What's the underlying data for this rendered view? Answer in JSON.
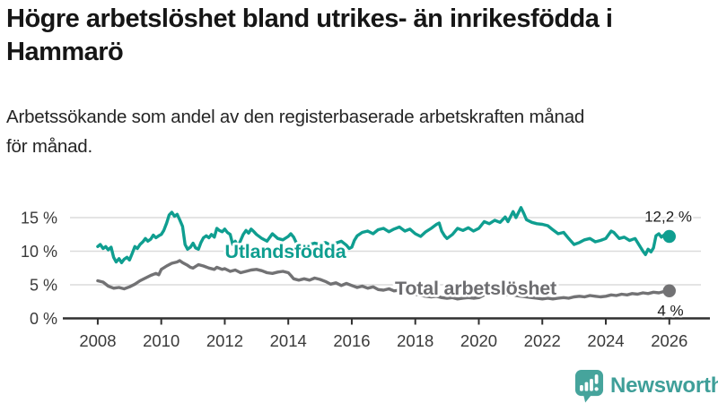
{
  "title": "Högre arbetslöshet bland utrikes- än inrikesfödda i Hammarö",
  "subtitle": "Arbetssökande som andel av den registerbaserade arbetskraften månad för månad.",
  "branding": {
    "logo_text": "Newsworthy"
  },
  "colors": {
    "foreign_born_line": "#0f9e90",
    "total_line": "#727274",
    "total_label": "#6d6d70",
    "grid": "#dcdcdc",
    "axis": "#303030",
    "tick_text": "#3a3a3a",
    "value_text": "#1a1a1a",
    "logo": "#3f9f99",
    "logo_icon": "#46a49c",
    "background": "#ffffff"
  },
  "chart_data": {
    "type": "line",
    "title": "Högre arbetslöshet bland utrikes- än inrikesfödda i Hammarö",
    "subtitle": "Arbetssökande som andel av den registerbaserade arbetskraften månad för månad.",
    "xlabel": "",
    "ylabel": "",
    "grid": "horizontal",
    "legend": "inline-labels",
    "xlim": [
      2006.9,
      2027.25
    ],
    "ylim": [
      0,
      17.5
    ],
    "x_ticks": [
      2008,
      2010,
      2012,
      2014,
      2016,
      2018,
      2020,
      2022,
      2024,
      2026
    ],
    "y_ticks": [
      {
        "value": 0,
        "label": "0 %"
      },
      {
        "value": 5,
        "label": "5 %"
      },
      {
        "value": 10,
        "label": "10 %"
      },
      {
        "value": 15,
        "label": "15 %"
      }
    ],
    "series": [
      {
        "name": "Utlandsfödda",
        "color": "#0f9e90",
        "end_label": "12,2 %",
        "end_value": 12.2,
        "points": [
          [
            2008.0,
            10.7
          ],
          [
            2008.08,
            11.0
          ],
          [
            2008.17,
            10.4
          ],
          [
            2008.25,
            10.7
          ],
          [
            2008.33,
            10.2
          ],
          [
            2008.42,
            10.6
          ],
          [
            2008.5,
            9.1
          ],
          [
            2008.58,
            8.4
          ],
          [
            2008.67,
            8.9
          ],
          [
            2008.75,
            8.3
          ],
          [
            2008.83,
            8.8
          ],
          [
            2008.92,
            9.1
          ],
          [
            2009.0,
            8.7
          ],
          [
            2009.08,
            9.6
          ],
          [
            2009.17,
            10.7
          ],
          [
            2009.25,
            10.4
          ],
          [
            2009.33,
            11.0
          ],
          [
            2009.42,
            11.4
          ],
          [
            2009.5,
            11.9
          ],
          [
            2009.58,
            11.5
          ],
          [
            2009.67,
            11.8
          ],
          [
            2009.75,
            12.4
          ],
          [
            2009.83,
            12.0
          ],
          [
            2009.92,
            12.3
          ],
          [
            2010.0,
            12.5
          ],
          [
            2010.08,
            13.1
          ],
          [
            2010.17,
            14.2
          ],
          [
            2010.25,
            15.4
          ],
          [
            2010.33,
            15.8
          ],
          [
            2010.42,
            15.2
          ],
          [
            2010.5,
            15.5
          ],
          [
            2010.58,
            14.7
          ],
          [
            2010.67,
            13.7
          ],
          [
            2010.75,
            11.0
          ],
          [
            2010.83,
            10.3
          ],
          [
            2010.92,
            10.6
          ],
          [
            2011.0,
            11.2
          ],
          [
            2011.08,
            10.5
          ],
          [
            2011.17,
            10.3
          ],
          [
            2011.25,
            11.3
          ],
          [
            2011.33,
            12.0
          ],
          [
            2011.42,
            12.3
          ],
          [
            2011.5,
            12.0
          ],
          [
            2011.58,
            12.5
          ],
          [
            2011.67,
            12.1
          ],
          [
            2011.75,
            13.4
          ],
          [
            2011.83,
            13.1
          ],
          [
            2011.92,
            12.9
          ],
          [
            2012.0,
            13.3
          ],
          [
            2012.08,
            12.8
          ],
          [
            2012.17,
            12.5
          ],
          [
            2012.25,
            11.0
          ],
          [
            2012.33,
            11.5
          ],
          [
            2012.42,
            10.7
          ],
          [
            2012.5,
            11.6
          ],
          [
            2012.58,
            12.5
          ],
          [
            2012.67,
            13.1
          ],
          [
            2012.75,
            12.7
          ],
          [
            2012.83,
            13.3
          ],
          [
            2012.92,
            12.9
          ],
          [
            2013.0,
            12.5
          ],
          [
            2013.17,
            11.9
          ],
          [
            2013.33,
            11.5
          ],
          [
            2013.5,
            12.6
          ],
          [
            2013.67,
            11.9
          ],
          [
            2013.83,
            11.7
          ],
          [
            2014.0,
            12.2
          ],
          [
            2014.08,
            12.6
          ],
          [
            2014.17,
            12.1
          ],
          [
            2014.25,
            11.3
          ],
          [
            2014.33,
            10.9
          ],
          [
            2014.5,
            10.7
          ],
          [
            2014.67,
            11.0
          ],
          [
            2014.83,
            11.2
          ],
          [
            2015.0,
            11.0
          ],
          [
            2015.17,
            11.3
          ],
          [
            2015.33,
            10.9
          ],
          [
            2015.5,
            11.2
          ],
          [
            2015.67,
            11.5
          ],
          [
            2015.83,
            10.9
          ],
          [
            2015.92,
            10.4
          ],
          [
            2016.0,
            10.6
          ],
          [
            2016.08,
            11.6
          ],
          [
            2016.17,
            12.3
          ],
          [
            2016.33,
            12.8
          ],
          [
            2016.5,
            13.0
          ],
          [
            2016.67,
            12.6
          ],
          [
            2016.83,
            13.2
          ],
          [
            2017.0,
            13.4
          ],
          [
            2017.17,
            12.9
          ],
          [
            2017.33,
            13.3
          ],
          [
            2017.5,
            13.6
          ],
          [
            2017.67,
            13.0
          ],
          [
            2017.83,
            13.3
          ],
          [
            2018.0,
            12.6
          ],
          [
            2018.17,
            12.2
          ],
          [
            2018.33,
            12.9
          ],
          [
            2018.5,
            13.4
          ],
          [
            2018.67,
            14.0
          ],
          [
            2018.75,
            14.2
          ],
          [
            2018.83,
            13.0
          ],
          [
            2018.92,
            12.3
          ],
          [
            2019.0,
            11.9
          ],
          [
            2019.17,
            12.5
          ],
          [
            2019.33,
            13.4
          ],
          [
            2019.5,
            13.1
          ],
          [
            2019.67,
            13.5
          ],
          [
            2019.83,
            13.0
          ],
          [
            2020.0,
            13.4
          ],
          [
            2020.17,
            14.4
          ],
          [
            2020.33,
            14.1
          ],
          [
            2020.5,
            14.6
          ],
          [
            2020.67,
            14.3
          ],
          [
            2020.83,
            15.1
          ],
          [
            2020.92,
            14.4
          ],
          [
            2021.08,
            15.9
          ],
          [
            2021.17,
            15.0
          ],
          [
            2021.33,
            16.5
          ],
          [
            2021.42,
            15.6
          ],
          [
            2021.5,
            14.7
          ],
          [
            2021.67,
            14.3
          ],
          [
            2021.83,
            14.1
          ],
          [
            2022.0,
            14.0
          ],
          [
            2022.17,
            13.8
          ],
          [
            2022.33,
            13.2
          ],
          [
            2022.5,
            12.6
          ],
          [
            2022.67,
            12.8
          ],
          [
            2022.83,
            11.9
          ],
          [
            2023.0,
            11.0
          ],
          [
            2023.17,
            11.3
          ],
          [
            2023.33,
            11.7
          ],
          [
            2023.5,
            11.9
          ],
          [
            2023.67,
            11.4
          ],
          [
            2023.83,
            11.6
          ],
          [
            2024.0,
            11.9
          ],
          [
            2024.17,
            13.0
          ],
          [
            2024.25,
            12.8
          ],
          [
            2024.42,
            11.9
          ],
          [
            2024.58,
            12.1
          ],
          [
            2024.75,
            11.6
          ],
          [
            2024.92,
            11.9
          ],
          [
            2025.0,
            11.3
          ],
          [
            2025.17,
            10.0
          ],
          [
            2025.25,
            9.5
          ],
          [
            2025.33,
            10.3
          ],
          [
            2025.42,
            9.9
          ],
          [
            2025.5,
            10.5
          ],
          [
            2025.58,
            12.3
          ],
          [
            2025.67,
            12.6
          ],
          [
            2025.75,
            12.1
          ],
          [
            2025.83,
            12.4
          ],
          [
            2025.92,
            12.0
          ],
          [
            2026.0,
            12.2
          ]
        ]
      },
      {
        "name": "Total arbetslöshet",
        "color": "#727274",
        "end_label": "4 %",
        "end_value": 4.0,
        "points": [
          [
            2008.0,
            5.6
          ],
          [
            2008.17,
            5.4
          ],
          [
            2008.33,
            4.8
          ],
          [
            2008.5,
            4.5
          ],
          [
            2008.67,
            4.6
          ],
          [
            2008.83,
            4.4
          ],
          [
            2009.0,
            4.7
          ],
          [
            2009.17,
            5.1
          ],
          [
            2009.33,
            5.6
          ],
          [
            2009.5,
            6.0
          ],
          [
            2009.67,
            6.4
          ],
          [
            2009.83,
            6.7
          ],
          [
            2009.92,
            6.5
          ],
          [
            2010.0,
            7.3
          ],
          [
            2010.17,
            7.8
          ],
          [
            2010.33,
            8.2
          ],
          [
            2010.5,
            8.4
          ],
          [
            2010.58,
            8.6
          ],
          [
            2010.67,
            8.3
          ],
          [
            2010.83,
            7.9
          ],
          [
            2010.92,
            7.6
          ],
          [
            2011.0,
            7.5
          ],
          [
            2011.17,
            8.0
          ],
          [
            2011.33,
            7.8
          ],
          [
            2011.5,
            7.5
          ],
          [
            2011.67,
            7.3
          ],
          [
            2011.75,
            7.6
          ],
          [
            2011.92,
            7.3
          ],
          [
            2012.0,
            7.4
          ],
          [
            2012.17,
            7.0
          ],
          [
            2012.33,
            7.2
          ],
          [
            2012.5,
            6.8
          ],
          [
            2012.67,
            7.0
          ],
          [
            2012.83,
            7.2
          ],
          [
            2013.0,
            7.3
          ],
          [
            2013.17,
            7.1
          ],
          [
            2013.33,
            6.8
          ],
          [
            2013.5,
            6.7
          ],
          [
            2013.67,
            6.9
          ],
          [
            2013.83,
            7.0
          ],
          [
            2014.0,
            6.8
          ],
          [
            2014.08,
            6.4
          ],
          [
            2014.17,
            5.9
          ],
          [
            2014.33,
            5.7
          ],
          [
            2014.5,
            5.9
          ],
          [
            2014.67,
            5.7
          ],
          [
            2014.83,
            6.0
          ],
          [
            2015.0,
            5.8
          ],
          [
            2015.17,
            5.5
          ],
          [
            2015.33,
            5.1
          ],
          [
            2015.5,
            5.3
          ],
          [
            2015.67,
            4.9
          ],
          [
            2015.83,
            5.2
          ],
          [
            2016.0,
            4.9
          ],
          [
            2016.17,
            4.6
          ],
          [
            2016.33,
            4.8
          ],
          [
            2016.5,
            4.5
          ],
          [
            2016.67,
            4.7
          ],
          [
            2016.83,
            4.3
          ],
          [
            2017.0,
            4.2
          ],
          [
            2017.17,
            4.4
          ],
          [
            2017.33,
            4.1
          ],
          [
            2017.5,
            4.2
          ],
          [
            2017.67,
            3.9
          ],
          [
            2017.83,
            3.7
          ],
          [
            2018.0,
            3.6
          ],
          [
            2018.17,
            3.4
          ],
          [
            2018.33,
            3.3
          ],
          [
            2018.5,
            3.2
          ],
          [
            2018.67,
            3.3
          ],
          [
            2018.83,
            3.1
          ],
          [
            2019.0,
            3.0
          ],
          [
            2019.17,
            3.1
          ],
          [
            2019.33,
            2.9
          ],
          [
            2019.5,
            3.0
          ],
          [
            2019.67,
            3.1
          ],
          [
            2019.83,
            3.0
          ],
          [
            2020.0,
            3.1
          ],
          [
            2020.17,
            3.5
          ],
          [
            2020.33,
            3.8
          ],
          [
            2020.5,
            3.7
          ],
          [
            2020.67,
            3.6
          ],
          [
            2020.83,
            3.5
          ],
          [
            2021.0,
            3.6
          ],
          [
            2021.17,
            3.4
          ],
          [
            2021.33,
            3.3
          ],
          [
            2021.5,
            3.2
          ],
          [
            2021.67,
            3.1
          ],
          [
            2021.83,
            3.0
          ],
          [
            2022.0,
            2.9
          ],
          [
            2022.17,
            3.0
          ],
          [
            2022.33,
            2.9
          ],
          [
            2022.5,
            3.0
          ],
          [
            2022.67,
            3.1
          ],
          [
            2022.83,
            3.0
          ],
          [
            2023.0,
            3.2
          ],
          [
            2023.17,
            3.3
          ],
          [
            2023.33,
            3.2
          ],
          [
            2023.5,
            3.4
          ],
          [
            2023.67,
            3.3
          ],
          [
            2023.83,
            3.2
          ],
          [
            2024.0,
            3.3
          ],
          [
            2024.17,
            3.5
          ],
          [
            2024.33,
            3.4
          ],
          [
            2024.5,
            3.6
          ],
          [
            2024.67,
            3.5
          ],
          [
            2024.83,
            3.7
          ],
          [
            2025.0,
            3.6
          ],
          [
            2025.17,
            3.8
          ],
          [
            2025.33,
            3.7
          ],
          [
            2025.5,
            3.9
          ],
          [
            2025.67,
            3.8
          ],
          [
            2025.83,
            4.0
          ],
          [
            2025.92,
            3.9
          ],
          [
            2026.0,
            4.1
          ]
        ]
      }
    ]
  }
}
